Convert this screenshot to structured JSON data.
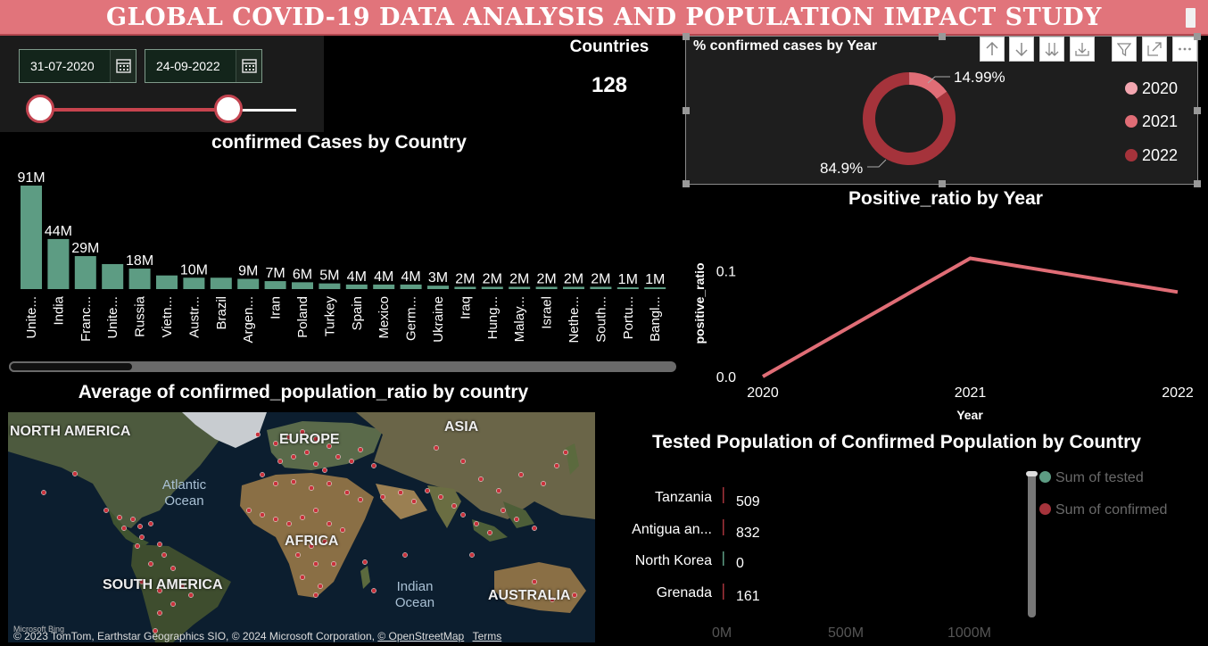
{
  "title": "GLOBAL COVID-19 DATA ANALYSIS AND POPULATION IMPACT STUDY",
  "date_filter": {
    "start": "31-07-2020",
    "end": "24-09-2022"
  },
  "countries_card": {
    "label": "Countries",
    "value": "128"
  },
  "donut": {
    "title": "% confirmed cases by Year",
    "chart_data": {
      "type": "pie",
      "categories": [
        "2020",
        "2021",
        "2022"
      ],
      "values": [
        0.11,
        14.99,
        84.9
      ],
      "labels": [
        "",
        "14.99%",
        "84.9%"
      ],
      "colors": [
        "#f3a6b0",
        "#e06d76",
        "#a5333b"
      ]
    },
    "legend": [
      "2020",
      "2021",
      "2022"
    ]
  },
  "bar_chart": {
    "title": "confirmed Cases by Country",
    "chart_data": {
      "type": "bar",
      "categories": [
        "Unite...",
        "India",
        "Franc...",
        "Unite...",
        "Russia",
        "Vietn...",
        "Austr...",
        "Brazil",
        "Argen...",
        "Iran",
        "Poland",
        "Turkey",
        "Spain",
        "Mexico",
        "Germ...",
        "Ukraine",
        "Iraq",
        "Hung...",
        "Malay...",
        "Israel",
        "Nethe...",
        "South...",
        "Portu...",
        "Bangl..."
      ],
      "values": [
        91,
        44,
        29,
        22,
        18,
        12,
        10,
        10,
        9,
        7,
        6,
        5,
        4,
        4,
        4,
        3,
        2,
        2,
        2,
        2,
        2,
        2,
        1,
        1
      ],
      "labels": [
        "91M",
        "44M",
        "29M",
        "",
        "18M",
        "",
        "10M",
        "",
        "9M",
        "7M",
        "6M",
        "5M",
        "4M",
        "4M",
        "4M",
        "3M",
        "2M",
        "2M",
        "2M",
        "2M",
        "2M",
        "2M",
        "1M",
        "1M"
      ],
      "color": "#5d9c83"
    }
  },
  "line_chart": {
    "title": "Positive_ratio by Year",
    "chart_data": {
      "type": "line",
      "x": [
        "2020",
        "2021",
        "2022"
      ],
      "values": [
        0.0,
        0.112,
        0.08
      ],
      "xlabel": "Year",
      "ylabel": "positive_ratio",
      "yticks": [
        "0.0",
        "0.1"
      ],
      "ylim": [
        0,
        0.12
      ],
      "color": "#e06d76"
    }
  },
  "map": {
    "title": "Average of confirmed_population_ratio by country",
    "labels": {
      "north_america": "NORTH AMERICA",
      "europe": "EUROPE",
      "asia": "ASIA",
      "africa": "AFRICA",
      "south_america": "SOUTH AMERICA",
      "australia": "AUSTRALIA",
      "atlantic": "Atlantic Ocean",
      "indian": "Indian Ocean"
    },
    "attribution": "© 2023 TomTom, Earthstar Geographics SIO, © 2024 Microsoft Corporation,",
    "osm_link": "© OpenStreetMap",
    "terms_link": "Terms",
    "logo_text": "Microsoft Bing"
  },
  "tested_chart": {
    "title": "Tested Population of Confirmed Population by Country",
    "chart_data": {
      "type": "bar",
      "categories": [
        "Tanzania",
        "Antigua an...",
        "North Korea",
        "Grenada"
      ],
      "values": [
        509,
        832,
        0,
        161
      ],
      "labels": [
        "509",
        "832",
        "0",
        "161"
      ],
      "xticks": [
        "0M",
        "500M",
        "1000M"
      ]
    },
    "legend": [
      {
        "name": "Sum of tested",
        "color": "#5d9c83"
      },
      {
        "name": "Sum of confirmed",
        "color": "#a5333b"
      }
    ]
  }
}
